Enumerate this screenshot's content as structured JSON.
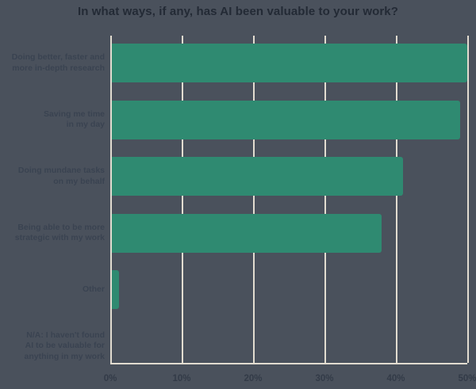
{
  "chart_data": {
    "type": "bar",
    "orientation": "horizontal",
    "title": "In what ways, if any, has AI been valuable to your work?",
    "categories": [
      "Doing better, faster and more in-depth research",
      "Saving me time in my day",
      "Doing mundane tasks on my behalf",
      "Being able to be more strategic with my work",
      "Other",
      "N/A: I haven't found AI to be valuable for anything in my work"
    ],
    "category_lines": [
      [
        "Doing better, faster and",
        "more in-depth research"
      ],
      [
        "Saving me time",
        "in my day"
      ],
      [
        "Doing mundane tasks",
        "on my behalf"
      ],
      [
        "Being able to be more",
        "strategic with my work"
      ],
      [
        "Other"
      ],
      [
        "N/A: I haven't found",
        "AI to be valuable for",
        "anything in my work"
      ]
    ],
    "values": [
      50,
      49,
      41,
      38,
      1,
      0
    ],
    "unit": "%",
    "x_ticks": [
      "0%",
      "10%",
      "20%",
      "30%",
      "40%",
      "50%"
    ],
    "xlim": [
      0,
      50
    ],
    "xlabel": "",
    "ylabel": "",
    "grid": "vertical",
    "legend": "none",
    "colors": {
      "background": "#4a515c",
      "bar": "#2f8a71",
      "grid": "#e2dcd0",
      "title_text": "#232a35",
      "label_text": "#3a4351",
      "tick_text": "#333b48"
    }
  }
}
